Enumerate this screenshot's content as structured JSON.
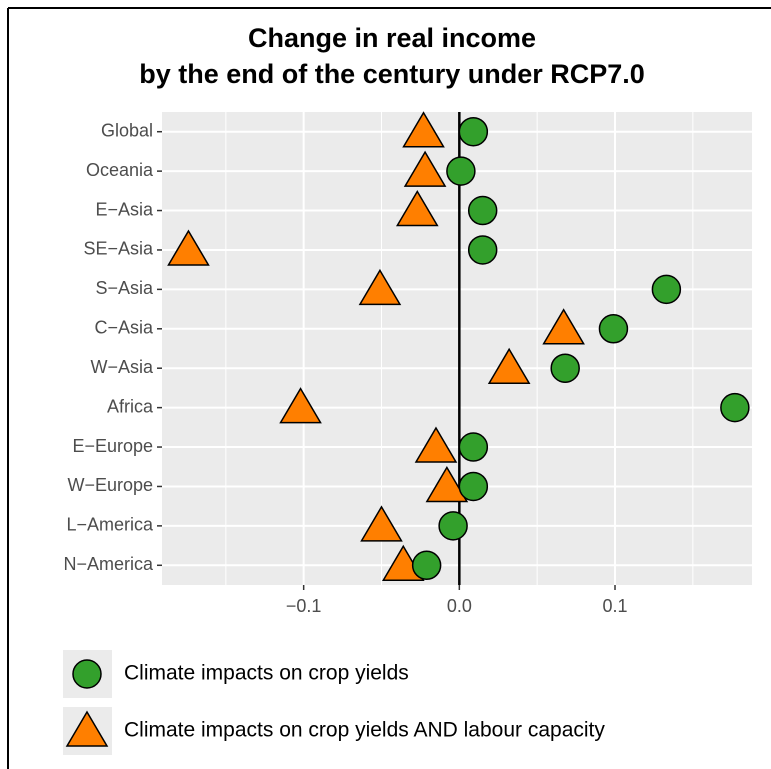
{
  "chart_data": {
    "type": "dot",
    "title": [
      "Change in real income",
      "by the end of the century under RCP7.0"
    ],
    "categories": [
      "Global",
      "Oceania",
      "E−Asia",
      "SE−Asia",
      "S−Asia",
      "C−Asia",
      "W−Asia",
      "Africa",
      "E−Europe",
      "W−Europe",
      "L−America",
      "N−America"
    ],
    "series": [
      {
        "name": "Climate impacts on crop yields",
        "color": "#33a02c",
        "marker": "circle",
        "values": [
          0.009,
          0.001,
          0.015,
          0.015,
          0.133,
          0.099,
          0.068,
          0.177,
          0.009,
          0.009,
          -0.004,
          -0.021
        ]
      },
      {
        "name": "Climate impacts on crop yields AND labour capacity",
        "color": "#ff7f00",
        "marker": "triangle",
        "values": [
          -0.023,
          -0.022,
          -0.027,
          -0.174,
          -0.051,
          0.067,
          0.032,
          -0.102,
          -0.015,
          -0.008,
          -0.05,
          -0.036
        ]
      }
    ],
    "xlim": [
      -0.191,
      0.188
    ],
    "xticks": [
      {
        "value": -0.1,
        "label": "−0.1"
      },
      {
        "value": 0,
        "label": "0.0"
      },
      {
        "value": 0.1,
        "label": "0.1"
      }
    ],
    "minor_xticks": [
      -0.15,
      -0.05,
      0.05,
      0.15
    ],
    "reference_line": 0,
    "grid": true,
    "legend": "bottom"
  }
}
